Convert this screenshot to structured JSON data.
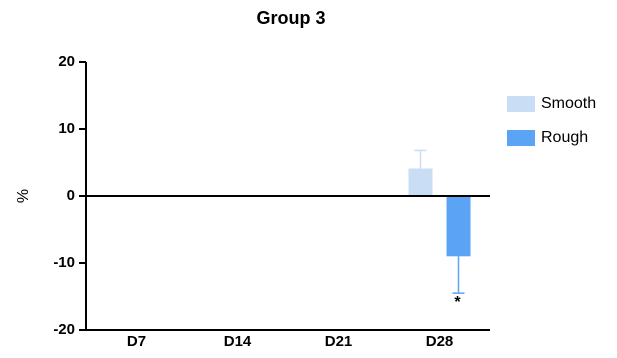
{
  "chart_data": {
    "type": "bar",
    "title": "Group 3",
    "xlabel": "",
    "ylabel": "%",
    "ylim": [
      -20,
      20
    ],
    "yticks": [
      -20,
      -10,
      0,
      10,
      20
    ],
    "categories": [
      "D7",
      "D14",
      "D21",
      "D28"
    ],
    "series": [
      {
        "name": "Smooth",
        "color": "#c9ddf5",
        "values": [
          null,
          null,
          null,
          4.1
        ],
        "errors": [
          null,
          null,
          null,
          2.7
        ]
      },
      {
        "name": "Rough",
        "color": "#5aa3f5",
        "values": [
          null,
          null,
          null,
          -9.0
        ],
        "errors": [
          null,
          null,
          null,
          5.5
        ]
      }
    ],
    "annotations": [
      {
        "category": "D28",
        "series": "Rough",
        "text": "*"
      }
    ],
    "legend": "right",
    "grid": false
  }
}
